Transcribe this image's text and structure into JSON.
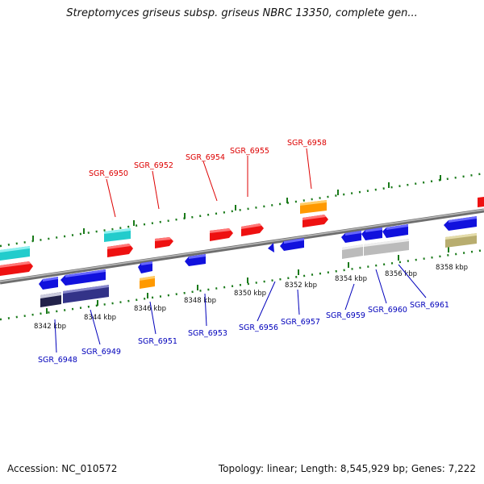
{
  "title": "Streptomyces griseus subsp. griseus NBRC 13350, complete gen...",
  "footer": {
    "accession": "Accession: NC_010572",
    "summary": "Topology: linear; Length: 8,545,929 bp; Genes: 7,222"
  },
  "colors": {
    "plus_label": "#dd0000",
    "minus_label": "#0000bb",
    "tick_green": "#1a7a1a",
    "backbone": "#888888",
    "gene_red": "#ee1111",
    "gene_blue": "#1111dd",
    "gene_cyan": "#22cccc",
    "gene_orange": "#ff9900",
    "gene_gray": "#bbbbbb",
    "gene_navy": "#333399",
    "gene_khaki": "#bbb077"
  },
  "scale": {
    "unit": "kbp",
    "labels": [
      "8342 kbp",
      "8344 kbp",
      "8346 kbp",
      "8348 kbp",
      "8350 kbp",
      "8352 kbp",
      "8354 kbp",
      "8356 kbp",
      "8358 kbp"
    ]
  },
  "plus_labels": [
    "SGR_6950",
    "SGR_6952",
    "SGR_6954",
    "SGR_6955",
    "SGR_6958"
  ],
  "minus_labels": [
    "SGR_6948",
    "SGR_6949",
    "SGR_6951",
    "SGR_6953",
    "SGR_6956",
    "SGR_6957",
    "SGR_6959",
    "SGR_6960",
    "SGR_6961"
  ]
}
